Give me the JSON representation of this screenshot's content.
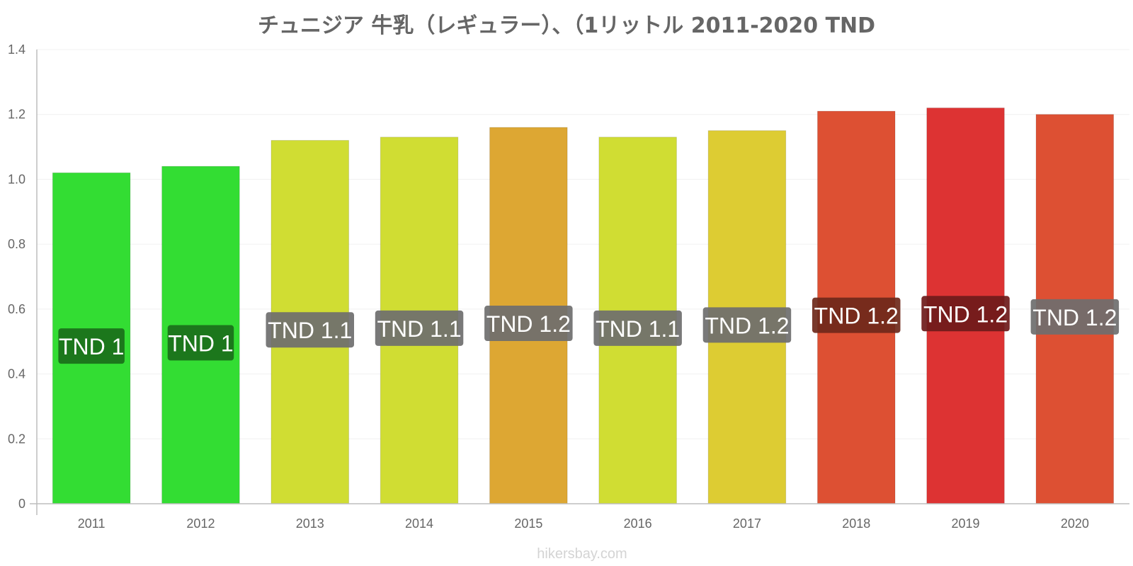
{
  "chart_data": {
    "type": "bar",
    "title": "チュニジア 牛乳（レギュラー）、（1リットル 2011-2020 TND",
    "categories": [
      "2011",
      "2012",
      "2013",
      "2014",
      "2015",
      "2016",
      "2017",
      "2018",
      "2019",
      "2020"
    ],
    "values": [
      1.02,
      1.04,
      1.12,
      1.13,
      1.16,
      1.13,
      1.15,
      1.21,
      1.22,
      1.2
    ],
    "data_labels": [
      "TND 1",
      "TND 1",
      "TND 1.1",
      "TND 1.1",
      "TND 1.2",
      "TND 1.1",
      "TND 1.2",
      "TND 1.2",
      "TND 1.2",
      "TND 1.2"
    ],
    "bar_colors": [
      "#33dd33",
      "#33dd33",
      "#d0dd33",
      "#d0dd33",
      "#dda733",
      "#d0dd33",
      "#ddcc33",
      "#dd5033",
      "#dd3333",
      "#dd5033"
    ],
    "label_box_colors": [
      "#1a6e1a",
      "#1a6e1a",
      "#6e6e6e",
      "#6e6e6e",
      "#6e6e6e",
      "#6e6e6e",
      "#6e6e6e",
      "#6e281a",
      "#6e1a1a",
      "#6e6e6e"
    ],
    "ylim": [
      0,
      1.4
    ],
    "yticks": [
      "0",
      "0.2",
      "0.4",
      "0.6",
      "0.8",
      "1.0",
      "1.2",
      "1.4"
    ],
    "xlabel": "",
    "ylabel": "",
    "grid": true,
    "legend": "none"
  },
  "watermark": "hikersbay.com"
}
